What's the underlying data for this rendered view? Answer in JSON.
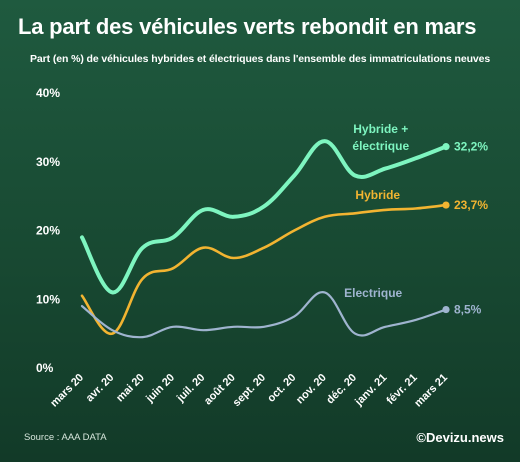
{
  "title": "La part des véhicules verts rebondit en mars",
  "subtitle": "Part (en %) de véhicules hybrides et électriques dans l'ensemble des immatriculations neuves",
  "source": "Source : AAA DATA",
  "brand": "©Devizu.news",
  "colors": {
    "background": "#1b4d36",
    "hybride_electrique": "#7ef5c0",
    "hybride": "#f2b431",
    "electrique": "#9fb4cf"
  },
  "chart_data": {
    "type": "line",
    "title": "La part des véhicules verts rebondit en mars",
    "subtitle": "Part (en %) de véhicules hybrides et électriques dans l'ensemble des immatriculations neuves",
    "xlabel": "",
    "ylabel": "",
    "ylim": [
      0,
      40
    ],
    "y_ticks": [
      "0%",
      "10%",
      "20%",
      "30%",
      "40%"
    ],
    "grid": false,
    "categories": [
      "mars 20",
      "avr. 20",
      "mai 20",
      "juin 20",
      "juil. 20",
      "août 20",
      "sept. 20",
      "oct. 20",
      "nov. 20",
      "déc. 20",
      "janv. 21",
      "févr. 21",
      "mars 21"
    ],
    "series": [
      {
        "name": "Hybride + électrique",
        "label_lines": [
          "Hybride +",
          "électrique"
        ],
        "color": "#7ef5c0",
        "values": [
          19,
          11,
          17.5,
          19,
          23,
          22,
          23.5,
          28,
          33,
          28,
          29,
          30.5,
          32.2
        ],
        "end_label": "32,2%"
      },
      {
        "name": "Hybride",
        "label_lines": [
          "Hybride"
        ],
        "color": "#f2b431",
        "values": [
          10.5,
          5,
          13,
          14.5,
          17.5,
          16,
          17.5,
          20,
          22,
          22.5,
          23,
          23.2,
          23.7
        ],
        "end_label": "23,7%"
      },
      {
        "name": "Electrique",
        "label_lines": [
          "Electrique"
        ],
        "color": "#9fb4cf",
        "values": [
          9,
          5.5,
          4.5,
          6,
          5.5,
          6,
          6,
          7.5,
          11,
          5,
          6,
          7,
          8.5
        ],
        "end_label": "8,5%"
      }
    ]
  }
}
